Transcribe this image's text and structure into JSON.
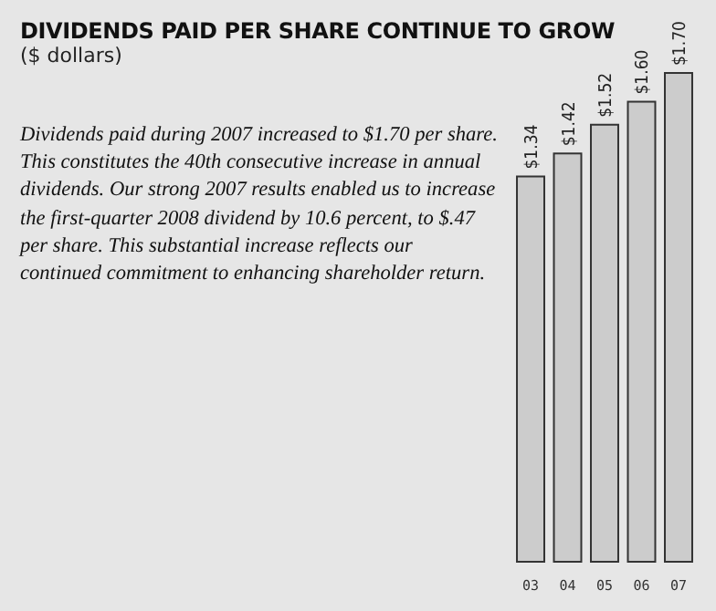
{
  "chart_data": {
    "type": "bar",
    "title": "DIVIDENDS PAID PER SHARE CONTINUE TO GROW",
    "subtitle": "($ dollars)",
    "annotations": [
      "Dividends paid during 2007 increased to $1.70 per share. This constitutes the 40th consecutive increase in annual dividends. Our strong 2007 results enabled us to increase the first-quarter 2008 dividend by 10.6 percent, to $.47 per share. This substantial increase reflects our continued commitment to enhancing shareholder return."
    ],
    "categories": [
      "03",
      "04",
      "05",
      "06",
      "07"
    ],
    "values": [
      1.34,
      1.42,
      1.52,
      1.6,
      1.7
    ],
    "value_labels": [
      "$1.34",
      "$1.42",
      "$1.52",
      "$1.60",
      "$1.70"
    ],
    "color": "#cccccc"
  }
}
